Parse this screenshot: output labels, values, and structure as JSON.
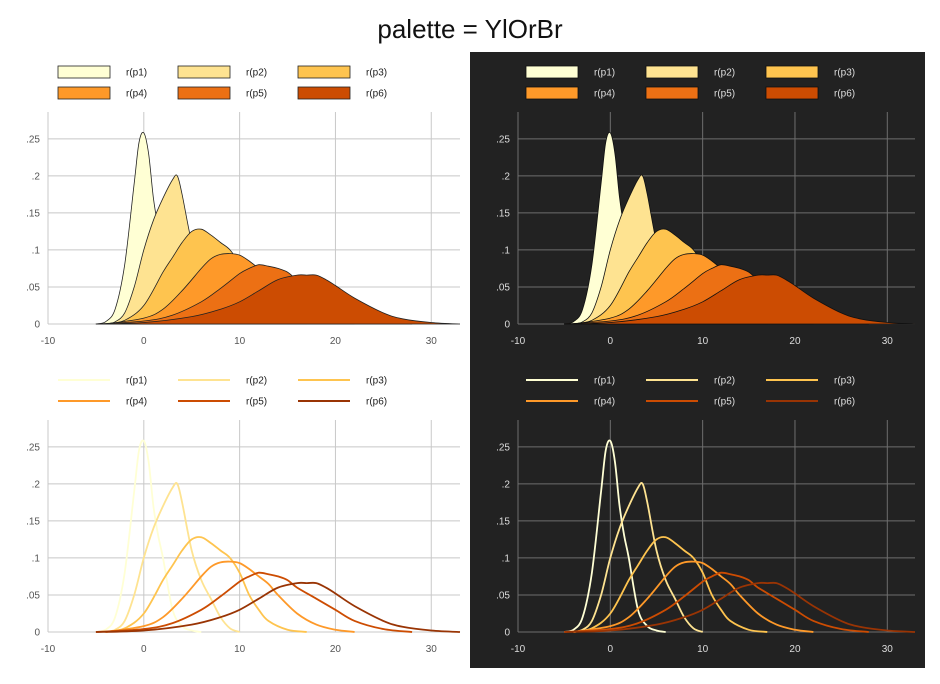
{
  "title": "palette = YlOrBr",
  "palette": [
    "#FFFFD4",
    "#FEE391",
    "#FEC44F",
    "#FE9929",
    "#EC7014",
    "#CC4C02",
    "#993404"
  ],
  "themes": {
    "light": {
      "bg": "#ffffff",
      "grid": "#c8c8c8",
      "tick": "#555555",
      "legend_text": "#222222",
      "outline": "#222222"
    },
    "dark": {
      "bg": "#222222",
      "grid": "#6e6e6e",
      "tick": "#dddddd",
      "legend_text": "#dddddd",
      "outline": "#111111"
    }
  },
  "chart_data": [
    {
      "type": "area",
      "theme": "light",
      "fill": true,
      "stacked": false,
      "xlim": [
        -10,
        33
      ],
      "ylim": [
        0,
        0.27
      ],
      "xticks": [
        -10,
        0,
        10,
        20,
        30
      ],
      "xtick_labels": [
        "-10",
        "0",
        "10",
        "20",
        "30"
      ],
      "yticks": [
        0,
        0.05,
        0.1,
        0.15,
        0.2,
        0.25
      ],
      "ytick_labels": [
        "0",
        ".05",
        ".1",
        ".15",
        ".2",
        ".25"
      ],
      "legend_position": "top",
      "series": [
        {
          "name": "r(p1)",
          "color": "#FFFFD4",
          "x": [
            -5,
            -4,
            -3,
            -2,
            -1,
            -0.5,
            0,
            0.5,
            1,
            1.5,
            2,
            3,
            4,
            5,
            6
          ],
          "y": [
            0,
            0.003,
            0.02,
            0.08,
            0.19,
            0.245,
            0.258,
            0.23,
            0.17,
            0.13,
            0.1,
            0.03,
            0.008,
            0.002,
            0
          ]
        },
        {
          "name": "r(p2)",
          "color": "#FEE391",
          "x": [
            -4,
            -3,
            -2,
            -1,
            0,
            1,
            2,
            3,
            3.5,
            4,
            5,
            6,
            7,
            8,
            9,
            10
          ],
          "y": [
            0,
            0.003,
            0.015,
            0.05,
            0.1,
            0.14,
            0.17,
            0.195,
            0.2,
            0.175,
            0.11,
            0.07,
            0.045,
            0.02,
            0.005,
            0
          ]
        },
        {
          "name": "r(p3)",
          "color": "#FEC44F",
          "x": [
            -4,
            -2,
            0,
            2,
            3,
            4,
            5,
            6,
            7,
            8,
            9,
            10,
            11,
            12,
            13,
            15,
            17
          ],
          "y": [
            0,
            0.005,
            0.025,
            0.07,
            0.09,
            0.11,
            0.125,
            0.128,
            0.12,
            0.11,
            0.1,
            0.08,
            0.05,
            0.03,
            0.015,
            0.003,
            0
          ]
        },
        {
          "name": "r(p4)",
          "color": "#FE9929",
          "x": [
            -4,
            0,
            2,
            4,
            6,
            7,
            8,
            9,
            10,
            11,
            12,
            13,
            14,
            16,
            18,
            20,
            22
          ],
          "y": [
            0,
            0.008,
            0.02,
            0.045,
            0.075,
            0.088,
            0.094,
            0.095,
            0.093,
            0.085,
            0.075,
            0.065,
            0.05,
            0.025,
            0.01,
            0.003,
            0
          ]
        },
        {
          "name": "r(p5)",
          "color": "#EC7014",
          "x": [
            -5,
            0,
            3,
            6,
            8,
            10,
            11,
            12,
            13,
            14,
            15,
            16,
            18,
            20,
            22,
            25,
            28
          ],
          "y": [
            0,
            0.004,
            0.012,
            0.03,
            0.048,
            0.068,
            0.075,
            0.08,
            0.078,
            0.075,
            0.07,
            0.06,
            0.045,
            0.03,
            0.015,
            0.004,
            0
          ]
        },
        {
          "name": "r(p6)",
          "color": "#CC4C02",
          "x": [
            -5,
            0,
            5,
            8,
            10,
            12,
            14,
            16,
            17,
            18,
            19,
            20,
            22,
            25,
            27,
            30,
            33
          ],
          "y": [
            0,
            0.002,
            0.01,
            0.02,
            0.03,
            0.045,
            0.06,
            0.066,
            0.066,
            0.066,
            0.06,
            0.052,
            0.035,
            0.015,
            0.007,
            0.002,
            0
          ]
        }
      ]
    },
    {
      "type": "area",
      "theme": "dark",
      "fill": true,
      "stacked": false,
      "xlim": [
        -10,
        33
      ],
      "ylim": [
        0,
        0.27
      ],
      "xticks": [
        -10,
        0,
        10,
        20,
        30
      ],
      "xtick_labels": [
        "-10",
        "0",
        "10",
        "20",
        "30"
      ],
      "yticks": [
        0,
        0.05,
        0.1,
        0.15,
        0.2,
        0.25
      ],
      "ytick_labels": [
        "0",
        ".05",
        ".1",
        ".15",
        ".2",
        ".25"
      ],
      "legend_position": "top",
      "series": [
        {
          "name": "r(p1)",
          "color": "#FFFFD4",
          "x": [
            -5,
            -4,
            -3,
            -2,
            -1,
            -0.5,
            0,
            0.5,
            1,
            1.5,
            2,
            3,
            4,
            5,
            6
          ],
          "y": [
            0,
            0.003,
            0.02,
            0.08,
            0.19,
            0.245,
            0.258,
            0.23,
            0.17,
            0.13,
            0.1,
            0.03,
            0.008,
            0.002,
            0
          ]
        },
        {
          "name": "r(p2)",
          "color": "#FEE391",
          "x": [
            -4,
            -3,
            -2,
            -1,
            0,
            1,
            2,
            3,
            3.5,
            4,
            5,
            6,
            7,
            8,
            9,
            10
          ],
          "y": [
            0,
            0.003,
            0.015,
            0.05,
            0.1,
            0.14,
            0.17,
            0.195,
            0.2,
            0.175,
            0.11,
            0.07,
            0.045,
            0.02,
            0.005,
            0
          ]
        },
        {
          "name": "r(p3)",
          "color": "#FEC44F",
          "x": [
            -4,
            -2,
            0,
            2,
            3,
            4,
            5,
            6,
            7,
            8,
            9,
            10,
            11,
            12,
            13,
            15,
            17
          ],
          "y": [
            0,
            0.005,
            0.025,
            0.07,
            0.09,
            0.11,
            0.125,
            0.128,
            0.12,
            0.11,
            0.1,
            0.08,
            0.05,
            0.03,
            0.015,
            0.003,
            0
          ]
        },
        {
          "name": "r(p4)",
          "color": "#FE9929",
          "x": [
            -4,
            0,
            2,
            4,
            6,
            7,
            8,
            9,
            10,
            11,
            12,
            13,
            14,
            16,
            18,
            20,
            22
          ],
          "y": [
            0,
            0.008,
            0.02,
            0.045,
            0.075,
            0.088,
            0.094,
            0.095,
            0.093,
            0.085,
            0.075,
            0.065,
            0.05,
            0.025,
            0.01,
            0.003,
            0
          ]
        },
        {
          "name": "r(p5)",
          "color": "#EC7014",
          "x": [
            -5,
            0,
            3,
            6,
            8,
            10,
            11,
            12,
            13,
            14,
            15,
            16,
            18,
            20,
            22,
            25,
            28
          ],
          "y": [
            0,
            0.004,
            0.012,
            0.03,
            0.048,
            0.068,
            0.075,
            0.08,
            0.078,
            0.075,
            0.07,
            0.06,
            0.045,
            0.03,
            0.015,
            0.004,
            0
          ]
        },
        {
          "name": "r(p6)",
          "color": "#CC4C02",
          "x": [
            -5,
            0,
            5,
            8,
            10,
            12,
            14,
            16,
            17,
            18,
            19,
            20,
            22,
            25,
            27,
            30,
            33
          ],
          "y": [
            0,
            0.002,
            0.01,
            0.02,
            0.03,
            0.045,
            0.06,
            0.066,
            0.066,
            0.066,
            0.06,
            0.052,
            0.035,
            0.015,
            0.007,
            0.002,
            0
          ]
        }
      ]
    },
    {
      "type": "line",
      "theme": "light",
      "fill": false,
      "xlim": [
        -10,
        33
      ],
      "ylim": [
        0,
        0.27
      ],
      "xticks": [
        -10,
        0,
        10,
        20,
        30
      ],
      "xtick_labels": [
        "-10",
        "0",
        "10",
        "20",
        "30"
      ],
      "yticks": [
        0,
        0.05,
        0.1,
        0.15,
        0.2,
        0.25
      ],
      "ytick_labels": [
        "0",
        ".05",
        ".1",
        ".15",
        ".2",
        ".25"
      ],
      "legend_position": "top",
      "series": [
        {
          "name": "r(p1)",
          "color": "#FFFFD4",
          "x": [
            -5,
            -4,
            -3,
            -2,
            -1,
            -0.5,
            0,
            0.5,
            1,
            1.5,
            2,
            3,
            4,
            5,
            6
          ],
          "y": [
            0,
            0.003,
            0.02,
            0.08,
            0.19,
            0.245,
            0.258,
            0.23,
            0.17,
            0.13,
            0.1,
            0.03,
            0.008,
            0.002,
            0
          ]
        },
        {
          "name": "r(p2)",
          "color": "#FEE391",
          "x": [
            -4,
            -3,
            -2,
            -1,
            0,
            1,
            2,
            3,
            3.5,
            4,
            5,
            6,
            7,
            8,
            9,
            10
          ],
          "y": [
            0,
            0.003,
            0.015,
            0.05,
            0.1,
            0.14,
            0.17,
            0.195,
            0.2,
            0.175,
            0.11,
            0.07,
            0.045,
            0.02,
            0.005,
            0
          ]
        },
        {
          "name": "r(p3)",
          "color": "#FEC44F",
          "x": [
            -4,
            -2,
            0,
            2,
            3,
            4,
            5,
            6,
            7,
            8,
            9,
            10,
            11,
            12,
            13,
            15,
            17
          ],
          "y": [
            0,
            0.005,
            0.025,
            0.07,
            0.09,
            0.11,
            0.125,
            0.128,
            0.12,
            0.11,
            0.1,
            0.08,
            0.05,
            0.03,
            0.015,
            0.003,
            0
          ]
        },
        {
          "name": "r(p4)",
          "color": "#FE9929",
          "x": [
            -4,
            0,
            2,
            4,
            6,
            7,
            8,
            9,
            10,
            11,
            12,
            13,
            14,
            16,
            18,
            20,
            22
          ],
          "y": [
            0,
            0.008,
            0.02,
            0.045,
            0.075,
            0.088,
            0.094,
            0.095,
            0.093,
            0.085,
            0.075,
            0.065,
            0.05,
            0.025,
            0.01,
            0.003,
            0
          ]
        },
        {
          "name": "r(p5)",
          "color": "#CC4C02",
          "x": [
            -5,
            0,
            3,
            6,
            8,
            10,
            11,
            12,
            13,
            14,
            15,
            16,
            18,
            20,
            22,
            25,
            28
          ],
          "y": [
            0,
            0.004,
            0.012,
            0.03,
            0.048,
            0.068,
            0.075,
            0.08,
            0.078,
            0.075,
            0.07,
            0.06,
            0.045,
            0.03,
            0.015,
            0.004,
            0
          ]
        },
        {
          "name": "r(p6)",
          "color": "#993404",
          "x": [
            -5,
            0,
            5,
            8,
            10,
            12,
            14,
            16,
            17,
            18,
            19,
            20,
            22,
            25,
            27,
            30,
            33
          ],
          "y": [
            0,
            0.002,
            0.01,
            0.02,
            0.03,
            0.045,
            0.06,
            0.066,
            0.066,
            0.066,
            0.06,
            0.052,
            0.035,
            0.015,
            0.007,
            0.002,
            0
          ]
        }
      ]
    },
    {
      "type": "line",
      "theme": "dark",
      "fill": false,
      "xlim": [
        -10,
        33
      ],
      "ylim": [
        0,
        0.27
      ],
      "xticks": [
        -10,
        0,
        10,
        20,
        30
      ],
      "xtick_labels": [
        "-10",
        "0",
        "10",
        "20",
        "30"
      ],
      "yticks": [
        0,
        0.05,
        0.1,
        0.15,
        0.2,
        0.25
      ],
      "ytick_labels": [
        "0",
        ".05",
        ".1",
        ".15",
        ".2",
        ".25"
      ],
      "legend_position": "top",
      "series": [
        {
          "name": "r(p1)",
          "color": "#FFFFD4",
          "x": [
            -5,
            -4,
            -3,
            -2,
            -1,
            -0.5,
            0,
            0.5,
            1,
            1.5,
            2,
            3,
            4,
            5,
            6
          ],
          "y": [
            0,
            0.003,
            0.02,
            0.08,
            0.19,
            0.245,
            0.258,
            0.23,
            0.17,
            0.13,
            0.1,
            0.03,
            0.008,
            0.002,
            0
          ]
        },
        {
          "name": "r(p2)",
          "color": "#FEE391",
          "x": [
            -4,
            -3,
            -2,
            -1,
            0,
            1,
            2,
            3,
            3.5,
            4,
            5,
            6,
            7,
            8,
            9,
            10
          ],
          "y": [
            0,
            0.003,
            0.015,
            0.05,
            0.1,
            0.14,
            0.17,
            0.195,
            0.2,
            0.175,
            0.11,
            0.07,
            0.045,
            0.02,
            0.005,
            0
          ]
        },
        {
          "name": "r(p3)",
          "color": "#FEC44F",
          "x": [
            -4,
            -2,
            0,
            2,
            3,
            4,
            5,
            6,
            7,
            8,
            9,
            10,
            11,
            12,
            13,
            15,
            17
          ],
          "y": [
            0,
            0.005,
            0.025,
            0.07,
            0.09,
            0.11,
            0.125,
            0.128,
            0.12,
            0.11,
            0.1,
            0.08,
            0.05,
            0.03,
            0.015,
            0.003,
            0
          ]
        },
        {
          "name": "r(p4)",
          "color": "#FE9929",
          "x": [
            -4,
            0,
            2,
            4,
            6,
            7,
            8,
            9,
            10,
            11,
            12,
            13,
            14,
            16,
            18,
            20,
            22
          ],
          "y": [
            0,
            0.008,
            0.02,
            0.045,
            0.075,
            0.088,
            0.094,
            0.095,
            0.093,
            0.085,
            0.075,
            0.065,
            0.05,
            0.025,
            0.01,
            0.003,
            0
          ]
        },
        {
          "name": "r(p5)",
          "color": "#CC4C02",
          "x": [
            -5,
            0,
            3,
            6,
            8,
            10,
            11,
            12,
            13,
            14,
            15,
            16,
            18,
            20,
            22,
            25,
            28
          ],
          "y": [
            0,
            0.004,
            0.012,
            0.03,
            0.048,
            0.068,
            0.075,
            0.08,
            0.078,
            0.075,
            0.07,
            0.06,
            0.045,
            0.03,
            0.015,
            0.004,
            0
          ]
        },
        {
          "name": "r(p6)",
          "color": "#993404",
          "x": [
            -5,
            0,
            5,
            8,
            10,
            12,
            14,
            16,
            17,
            18,
            19,
            20,
            22,
            25,
            27,
            30,
            33
          ],
          "y": [
            0,
            0.002,
            0.01,
            0.02,
            0.03,
            0.045,
            0.06,
            0.066,
            0.066,
            0.066,
            0.06,
            0.052,
            0.035,
            0.015,
            0.007,
            0.002,
            0
          ]
        }
      ]
    }
  ]
}
